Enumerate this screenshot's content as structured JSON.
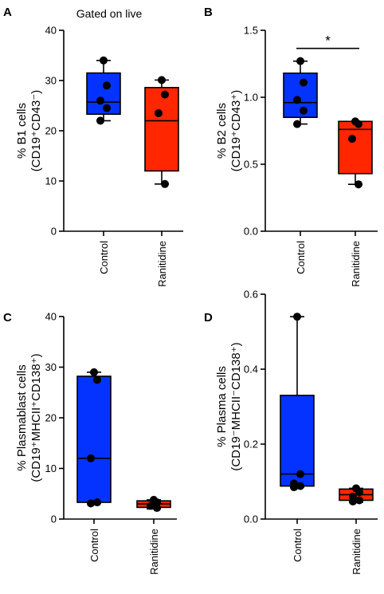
{
  "chart_data": [
    {
      "type": "box",
      "panel": "A",
      "annotation": "Gated on live",
      "ylabel_line1": "% B1 cells",
      "ylabel_line2": "(CD19⁺CD43⁻)",
      "ylim": [
        0,
        40
      ],
      "yticks": [
        "0",
        "10",
        "20",
        "30",
        "40"
      ],
      "categories": [
        "Control",
        "Ranitidine"
      ],
      "series": [
        {
          "category": "Control",
          "color": "#0433ff",
          "whisker_low": 22,
          "q1": 23.3,
          "median": 25.7,
          "q3": 31.5,
          "whisker_high": 34,
          "points": [
            34,
            29,
            26,
            24.5,
            22
          ]
        },
        {
          "category": "Ranitidine",
          "color": "#ff2600",
          "whisker_low": 9.4,
          "q1": 12,
          "median": 22,
          "q3": 28.6,
          "whisker_high": 30.1,
          "points": [
            30.1,
            27.2,
            23.5,
            9.4
          ]
        }
      ],
      "significance": null
    },
    {
      "type": "box",
      "panel": "B",
      "annotation": "",
      "ylabel_line1": "% B2 cells",
      "ylabel_line2": "(CD19⁺CD43⁺)",
      "ylim": [
        0,
        1.5
      ],
      "yticks": [
        "0.0",
        "0.5",
        "1.0",
        "1.5"
      ],
      "categories": [
        "Control",
        "Ranitidine"
      ],
      "series": [
        {
          "category": "Control",
          "color": "#0433ff",
          "whisker_low": 0.8,
          "q1": 0.85,
          "median": 0.96,
          "q3": 1.18,
          "whisker_high": 1.27,
          "points": [
            1.27,
            1.11,
            0.98,
            0.9,
            0.8
          ]
        },
        {
          "category": "Ranitidine",
          "color": "#ff2600",
          "whisker_low": 0.35,
          "q1": 0.43,
          "median": 0.76,
          "q3": 0.82,
          "whisker_high": 0.82,
          "points": [
            0.82,
            0.8,
            0.69,
            0.35
          ]
        }
      ],
      "significance": "*"
    },
    {
      "type": "box",
      "panel": "C",
      "annotation": "",
      "ylabel_line1": "% Plasmablast cells",
      "ylabel_line2": "(CD19⁺MHCII⁺CD138⁺)",
      "ylim": [
        0,
        40
      ],
      "yticks": [
        "0",
        "10",
        "20",
        "30",
        "40"
      ],
      "categories": [
        "Control",
        "Ranitidine"
      ],
      "series": [
        {
          "category": "Control",
          "color": "#0433ff",
          "whisker_low": 3.1,
          "q1": 3.3,
          "median": 12,
          "q3": 28.2,
          "whisker_high": 29,
          "points": [
            29,
            27.5,
            12,
            3.3,
            3.1
          ]
        },
        {
          "category": "Ranitidine",
          "color": "#ff2600",
          "whisker_low": 2,
          "q1": 2.3,
          "median": 3,
          "q3": 3.6,
          "whisker_high": 3.8,
          "points": [
            3.8,
            3.3,
            2.6,
            2.2
          ]
        }
      ],
      "significance": null
    },
    {
      "type": "box",
      "panel": "D",
      "annotation": "",
      "ylabel_line1": "% Plasma cells",
      "ylabel_line2": "(CD19⁻MHCII⁻CD138⁺)",
      "ylim": [
        0,
        0.6
      ],
      "yticks": [
        "0.0",
        "0.2",
        "0.4",
        "0.6"
      ],
      "categories": [
        "Control",
        "Ranitidine"
      ],
      "series": [
        {
          "category": "Control",
          "color": "#0433ff",
          "whisker_low": 0.085,
          "q1": 0.088,
          "median": 0.12,
          "q3": 0.33,
          "whisker_high": 0.54,
          "points": [
            0.54,
            0.12,
            0.095,
            0.088,
            0.085
          ]
        },
        {
          "category": "Ranitidine",
          "color": "#ff2600",
          "whisker_low": 0.045,
          "q1": 0.05,
          "median": 0.065,
          "q3": 0.08,
          "whisker_high": 0.082,
          "points": [
            0.082,
            0.072,
            0.06,
            0.05,
            0.047
          ]
        }
      ],
      "significance": null
    }
  ]
}
